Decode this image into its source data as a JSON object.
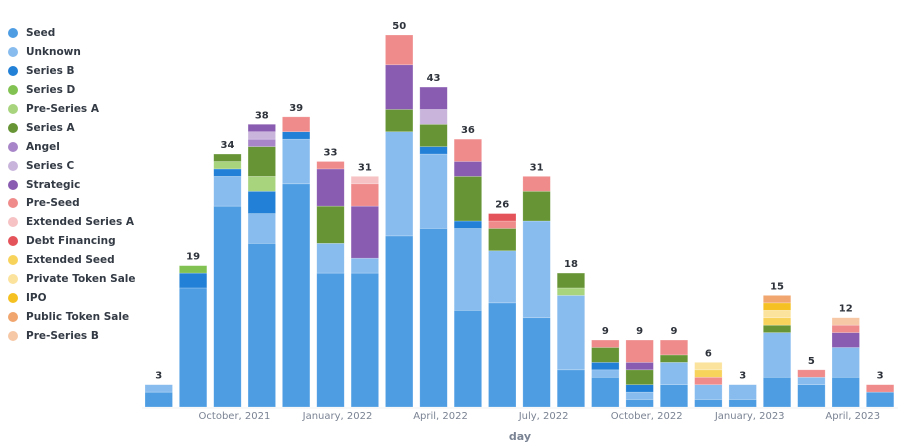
{
  "chart_data": {
    "type": "bar",
    "stacked": true,
    "title": "",
    "xlabel": "day",
    "ylabel": "",
    "ylim": [
      0,
      50
    ],
    "grid": false,
    "legend_position": "left",
    "x_tick_labels": [
      {
        "label": "October, 2021",
        "index": 2
      },
      {
        "label": "January, 2022",
        "index": 5
      },
      {
        "label": "April, 2022",
        "index": 8
      },
      {
        "label": "July, 2022",
        "index": 11
      },
      {
        "label": "October, 2022",
        "index": 14
      },
      {
        "label": "January, 2023",
        "index": 17
      },
      {
        "label": "April, 2023",
        "index": 20
      }
    ],
    "categories": [
      "2021-08",
      "2021-09",
      "2021-10",
      "2021-11",
      "2021-12",
      "2022-01",
      "2022-02",
      "2022-03",
      "2022-04",
      "2022-05",
      "2022-06",
      "2022-07",
      "2022-08",
      "2022-09",
      "2022-10",
      "2022-11",
      "2022-12",
      "2023-01",
      "2023-02",
      "2023-03",
      "2023-04",
      "2023-05"
    ],
    "totals": [
      3,
      19,
      34,
      38,
      39,
      33,
      31,
      50,
      43,
      36,
      26,
      31,
      18,
      9,
      9,
      9,
      6,
      3,
      15,
      5,
      12,
      3
    ],
    "series": [
      {
        "name": "Seed",
        "color": "#4e9de3",
        "values": [
          2,
          16,
          27,
          22,
          30,
          18,
          18,
          23,
          24,
          13,
          14,
          12,
          5,
          4,
          1,
          3,
          1,
          1,
          4,
          3,
          4,
          2
        ]
      },
      {
        "name": "Unknown",
        "color": "#88bcee",
        "values": [
          1,
          0,
          4,
          4,
          6,
          4,
          2,
          14,
          10,
          11,
          7,
          13,
          10,
          1,
          1,
          3,
          2,
          2,
          6,
          1,
          4,
          0
        ]
      },
      {
        "name": "Series B",
        "color": "#2280d6",
        "values": [
          0,
          2,
          1,
          3,
          1,
          0,
          0,
          0,
          1,
          1,
          0,
          0,
          0,
          1,
          1,
          0,
          0,
          0,
          0,
          0,
          0,
          0
        ]
      },
      {
        "name": "Series D",
        "color": "#82c252",
        "values": [
          0,
          1,
          0,
          0,
          0,
          0,
          0,
          0,
          0,
          0,
          0,
          0,
          0,
          0,
          0,
          0,
          0,
          0,
          0,
          0,
          0,
          0
        ]
      },
      {
        "name": "Pre-Series A",
        "color": "#a8d47e",
        "values": [
          0,
          0,
          1,
          2,
          0,
          0,
          0,
          0,
          0,
          0,
          0,
          0,
          1,
          0,
          0,
          0,
          0,
          0,
          0,
          0,
          0,
          0
        ]
      },
      {
        "name": "Series A",
        "color": "#679535",
        "values": [
          0,
          0,
          1,
          4,
          0,
          5,
          0,
          3,
          3,
          6,
          3,
          4,
          2,
          2,
          2,
          1,
          0,
          0,
          1,
          0,
          0,
          0
        ]
      },
      {
        "name": "Angel",
        "color": "#a785c8",
        "values": [
          0,
          0,
          0,
          1,
          0,
          0,
          0,
          0,
          0,
          0,
          0,
          0,
          0,
          0,
          0,
          0,
          0,
          0,
          0,
          0,
          0,
          0
        ]
      },
      {
        "name": "Series C",
        "color": "#c9b5dc",
        "values": [
          0,
          0,
          0,
          1,
          0,
          0,
          0,
          0,
          2,
          0,
          0,
          0,
          0,
          0,
          0,
          0,
          0,
          0,
          0,
          0,
          0,
          0
        ]
      },
      {
        "name": "Strategic",
        "color": "#8a5cb1",
        "values": [
          0,
          0,
          0,
          1,
          0,
          5,
          7,
          6,
          3,
          2,
          0,
          0,
          0,
          0,
          1,
          0,
          0,
          0,
          0,
          0,
          2,
          0
        ]
      },
      {
        "name": "Pre-Seed",
        "color": "#ef8b8b",
        "values": [
          0,
          0,
          0,
          0,
          2,
          1,
          3,
          4,
          0,
          3,
          1,
          2,
          0,
          1,
          3,
          2,
          1,
          0,
          0,
          1,
          1,
          1
        ]
      },
      {
        "name": "Extended Series A",
        "color": "#f6c2c4",
        "values": [
          0,
          0,
          0,
          0,
          0,
          0,
          1,
          0,
          0,
          0,
          0,
          0,
          0,
          0,
          0,
          0,
          0,
          0,
          0,
          0,
          0,
          0
        ]
      },
      {
        "name": "Debt Financing",
        "color": "#e5535a",
        "values": [
          0,
          0,
          0,
          0,
          0,
          0,
          0,
          0,
          0,
          0,
          1,
          0,
          0,
          0,
          0,
          0,
          0,
          0,
          0,
          0,
          0,
          0
        ]
      },
      {
        "name": "Extended Seed",
        "color": "#f8d35c",
        "values": [
          0,
          0,
          0,
          0,
          0,
          0,
          0,
          0,
          0,
          0,
          0,
          0,
          0,
          0,
          0,
          0,
          1,
          0,
          1,
          0,
          0,
          0
        ]
      },
      {
        "name": "Private Token Sale",
        "color": "#fbe39e",
        "values": [
          0,
          0,
          0,
          0,
          0,
          0,
          0,
          0,
          0,
          0,
          0,
          0,
          0,
          0,
          0,
          0,
          1,
          0,
          1,
          0,
          0,
          0
        ]
      },
      {
        "name": "IPO",
        "color": "#f5c122",
        "values": [
          0,
          0,
          0,
          0,
          0,
          0,
          0,
          0,
          0,
          0,
          0,
          0,
          0,
          0,
          0,
          0,
          0,
          0,
          1,
          0,
          0,
          0
        ]
      },
      {
        "name": "Public Token Sale",
        "color": "#f0a66e",
        "values": [
          0,
          0,
          0,
          0,
          0,
          0,
          0,
          0,
          0,
          0,
          0,
          0,
          0,
          0,
          0,
          0,
          0,
          0,
          1,
          0,
          0,
          0
        ]
      },
      {
        "name": "Pre-Series B",
        "color": "#f6c8a6",
        "values": [
          0,
          0,
          0,
          0,
          0,
          0,
          0,
          0,
          0,
          0,
          0,
          0,
          0,
          0,
          0,
          0,
          0,
          0,
          0,
          0,
          1,
          0
        ]
      }
    ]
  }
}
